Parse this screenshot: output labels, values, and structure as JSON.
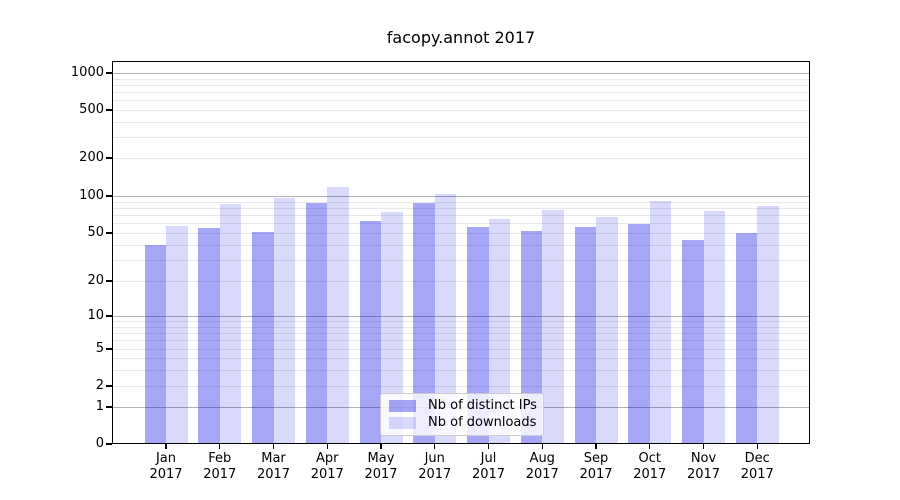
{
  "chart_data": {
    "type": "bar",
    "title": "facopy.annot 2017",
    "categories": [
      "Jan",
      "Feb",
      "Mar",
      "Apr",
      "May",
      "Jun",
      "Jul",
      "Aug",
      "Sep",
      "Oct",
      "Nov",
      "Dec"
    ],
    "category_year": "2017",
    "series": [
      {
        "name": "Nb of distinct IPs",
        "color": "rgba(0,0,230,0.35)",
        "values": [
          40,
          55,
          51,
          88,
          63,
          88,
          56,
          52,
          56,
          59,
          44,
          50
        ]
      },
      {
        "name": "Nb of downloads",
        "color": "rgba(0,0,230,0.15)",
        "values": [
          57,
          86,
          97,
          118,
          74,
          104,
          65,
          77,
          67,
          91,
          76,
          83
        ]
      }
    ],
    "y_axis": {
      "ticks": [
        0,
        1,
        2,
        5,
        10,
        20,
        50,
        100,
        200,
        500,
        1000
      ],
      "scale": "log-like (compressed near zero)",
      "major_grid": [
        1,
        10,
        100,
        1000
      ],
      "minor_grid": [
        2,
        3,
        4,
        5,
        6,
        7,
        8,
        9,
        20,
        30,
        40,
        50,
        60,
        70,
        80,
        90,
        200,
        300,
        400,
        500,
        600,
        700,
        800,
        900
      ]
    },
    "xlabel": "",
    "ylabel": "",
    "ylim": [
      0,
      1300
    ],
    "grid": true,
    "legend": {
      "position": "lower center",
      "entries": [
        "Nb of distinct IPs",
        "Nb of downloads"
      ]
    }
  },
  "colors": {
    "bar_distinct_ips_hex": "#a6a6f6",
    "bar_downloads_hex": "#d9d9fb",
    "grid_major": "#b0b0b0",
    "grid_minor": "#e8e8e8",
    "axis": "#000000",
    "background": "#ffffff"
  }
}
